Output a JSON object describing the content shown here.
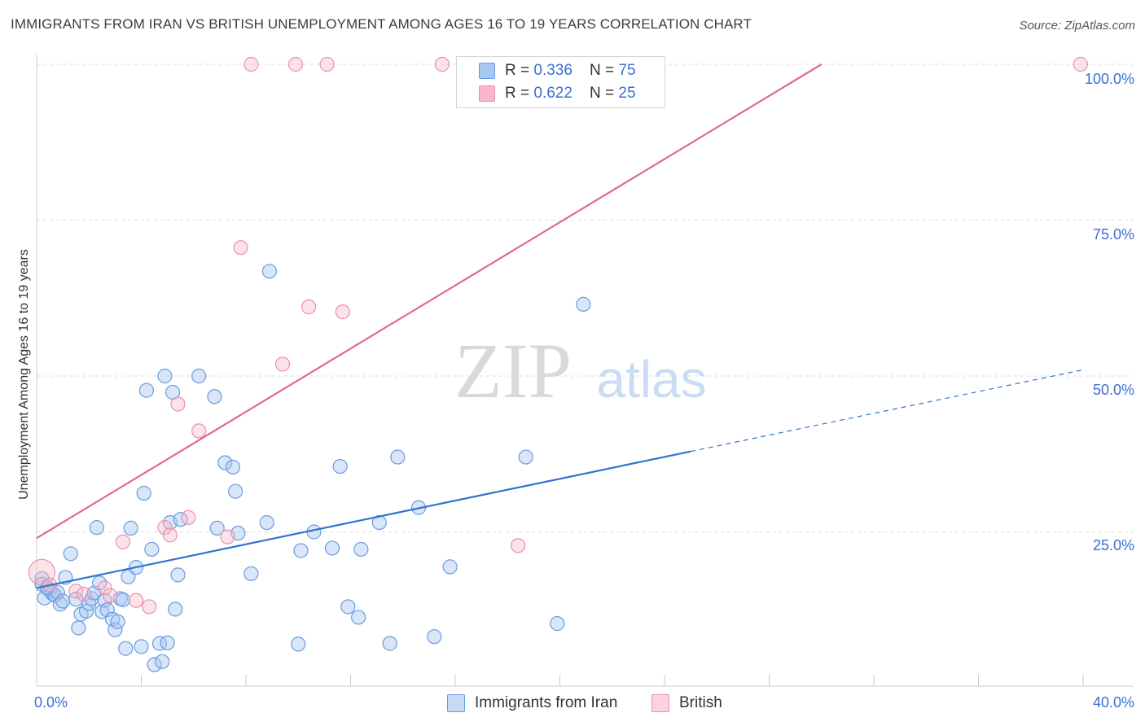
{
  "header": {
    "title": "IMMIGRANTS FROM IRAN VS BRITISH UNEMPLOYMENT AMONG AGES 16 TO 19 YEARS CORRELATION CHART",
    "source": "Source: ZipAtlas.com"
  },
  "watermark": {
    "zip": "ZIP",
    "atlas": "atlas"
  },
  "legend": {
    "series1": {
      "r_label": "R = ",
      "r_value": "0.336",
      "n_label": "N = ",
      "n_value": "75"
    },
    "series2": {
      "r_label": "R = ",
      "r_value": "0.622",
      "n_label": "N = ",
      "n_value": "25"
    }
  },
  "bottom_legend": {
    "series1": "Immigrants from Iran",
    "series2": "British"
  },
  "axis": {
    "ylabel": "Unemployment Among Ages 16 to 19 years",
    "x_min_label": "0.0%",
    "x_max_label": "40.0%",
    "y_ticks": [
      "100.0%",
      "75.0%",
      "50.0%",
      "25.0%"
    ]
  },
  "colors": {
    "blue_fill": "#a9c8f0",
    "blue_stroke": "#6a9be0",
    "blue_line": "#2f74d0",
    "pink_fill": "#f7b8ca",
    "pink_stroke": "#e890aa",
    "pink_line": "#e06a92",
    "tick_text": "#3b6fd0",
    "grid": "#dddddd"
  },
  "chart_data": {
    "type": "scatter",
    "title": "IMMIGRANTS FROM IRAN VS BRITISH UNEMPLOYMENT AMONG AGES 16 TO 19 YEARS CORRELATION CHART",
    "xlabel": "",
    "ylabel": "Unemployment Among Ages 16 to 19 years",
    "xlim": [
      0,
      40
    ],
    "ylim": [
      0,
      100
    ],
    "grid": true,
    "series": [
      {
        "name": "Immigrants from Iran",
        "r": 0.336,
        "n": 75,
        "trend": {
          "x0": 0,
          "y0": 16.0,
          "x1": 25,
          "y1": 37.9,
          "dashed_to_x": 40,
          "dashed_to_y": 51.0
        },
        "points": [
          [
            0.2,
            17.5
          ],
          [
            0.2,
            16.6
          ],
          [
            0.3,
            14.4
          ],
          [
            0.4,
            16.1
          ],
          [
            0.5,
            15.7
          ],
          [
            0.6,
            15.1
          ],
          [
            0.7,
            14.8
          ],
          [
            0.8,
            15.3
          ],
          [
            0.9,
            13.4
          ],
          [
            1.0,
            13.9
          ],
          [
            1.1,
            17.7
          ],
          [
            1.3,
            21.5
          ],
          [
            1.5,
            14.2
          ],
          [
            1.6,
            9.6
          ],
          [
            1.7,
            11.8
          ],
          [
            1.9,
            12.3
          ],
          [
            2.0,
            13.5
          ],
          [
            2.1,
            14.3
          ],
          [
            2.2,
            15.2
          ],
          [
            2.3,
            25.7
          ],
          [
            2.4,
            16.8
          ],
          [
            2.5,
            12.2
          ],
          [
            2.6,
            14.0
          ],
          [
            2.7,
            12.5
          ],
          [
            2.9,
            11.0
          ],
          [
            3.0,
            9.3
          ],
          [
            3.1,
            10.6
          ],
          [
            3.2,
            14.3
          ],
          [
            3.3,
            14.1
          ],
          [
            3.4,
            6.3
          ],
          [
            3.5,
            17.8
          ],
          [
            3.6,
            25.6
          ],
          [
            3.8,
            19.3
          ],
          [
            4.0,
            6.6
          ],
          [
            4.1,
            31.2
          ],
          [
            4.2,
            47.7
          ],
          [
            4.4,
            22.2
          ],
          [
            4.5,
            3.7
          ],
          [
            4.7,
            7.1
          ],
          [
            4.8,
            4.2
          ],
          [
            4.9,
            50.0
          ],
          [
            5.0,
            7.2
          ],
          [
            5.1,
            26.5
          ],
          [
            5.2,
            47.4
          ],
          [
            5.3,
            12.6
          ],
          [
            5.4,
            18.1
          ],
          [
            5.5,
            27.0
          ],
          [
            6.2,
            50.0
          ],
          [
            6.8,
            46.7
          ],
          [
            6.9,
            25.6
          ],
          [
            7.2,
            36.1
          ],
          [
            7.5,
            35.4
          ],
          [
            7.6,
            31.5
          ],
          [
            7.7,
            24.8
          ],
          [
            8.2,
            18.3
          ],
          [
            8.8,
            26.5
          ],
          [
            8.9,
            66.8
          ],
          [
            10.0,
            7.0
          ],
          [
            10.1,
            22.0
          ],
          [
            10.6,
            25.0
          ],
          [
            11.3,
            22.4
          ],
          [
            11.6,
            35.5
          ],
          [
            11.9,
            13.0
          ],
          [
            12.3,
            11.3
          ],
          [
            12.4,
            22.2
          ],
          [
            13.1,
            26.5
          ],
          [
            13.5,
            7.1
          ],
          [
            13.8,
            37.0
          ],
          [
            14.6,
            28.9
          ],
          [
            15.2,
            8.2
          ],
          [
            15.8,
            19.4
          ],
          [
            18.7,
            37.0
          ],
          [
            19.9,
            10.3
          ],
          [
            20.9,
            61.5
          ],
          [
            0.4,
            16.0
          ]
        ]
      },
      {
        "name": "British",
        "r": 0.622,
        "n": 25,
        "trend": {
          "x0": 0,
          "y0": 24.0,
          "x1": 30,
          "y1": 100.0
        },
        "points": [
          [
            0.2,
            18.5
          ],
          [
            0.5,
            16.5
          ],
          [
            1.5,
            15.5
          ],
          [
            1.8,
            15.0
          ],
          [
            2.6,
            16.0
          ],
          [
            2.8,
            14.8
          ],
          [
            3.3,
            23.4
          ],
          [
            3.8,
            14.0
          ],
          [
            4.3,
            13.0
          ],
          [
            4.9,
            25.7
          ],
          [
            5.1,
            24.5
          ],
          [
            5.4,
            45.5
          ],
          [
            5.8,
            27.3
          ],
          [
            6.2,
            41.2
          ],
          [
            7.3,
            24.2
          ],
          [
            7.8,
            70.6
          ],
          [
            8.2,
            100
          ],
          [
            9.4,
            51.9
          ],
          [
            9.9,
            100
          ],
          [
            10.4,
            61.1
          ],
          [
            11.1,
            100
          ],
          [
            11.7,
            60.3
          ],
          [
            15.5,
            100
          ],
          [
            18.4,
            22.8
          ],
          [
            39.9,
            100
          ]
        ]
      }
    ]
  }
}
